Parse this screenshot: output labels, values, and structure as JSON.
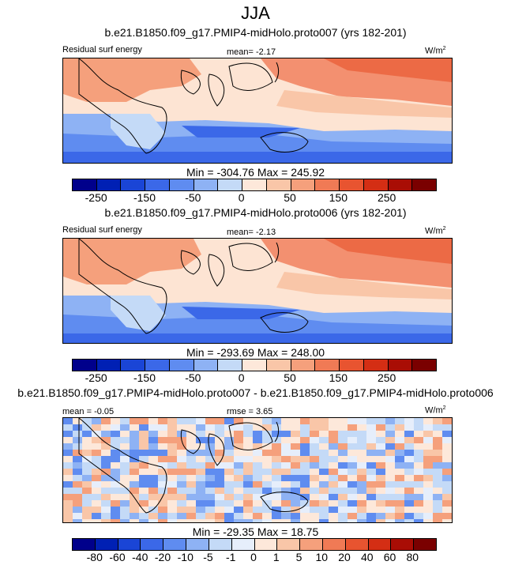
{
  "figure_title": "JJA",
  "panels": [
    {
      "title": "b.e21.B1850.f09_g17.PMIP4-midHolo.proto007 (yrs 182-201)",
      "left_label": "Residual surf energy",
      "mean_label": "mean=",
      "mean_value": "-2.17",
      "units": "W/m",
      "units_exp": "2",
      "minmax": "Min = -304.76 Max = 245.92",
      "colorbar_ticks": [
        "-250",
        "-150",
        "-50",
        "0",
        "50",
        "150",
        "250"
      ]
    },
    {
      "title": "b.e21.B1850.f09_g17.PMIP4-midHolo.proto006 (yrs 182-201)",
      "left_label": "Residual surf energy",
      "mean_label": "mean=",
      "mean_value": "-2.13",
      "units": "W/m",
      "units_exp": "2",
      "minmax": "Min = -293.69 Max = 248.00",
      "colorbar_ticks": [
        "-250",
        "-150",
        "-50",
        "0",
        "50",
        "150",
        "250"
      ]
    },
    {
      "title": "b.e21.B1850.f09_g17.PMIP4-midHolo.proto007 - b.e21.B1850.f09_g17.PMIP4-midHolo.proto006",
      "mean_label": "mean =",
      "mean_value": "-0.05",
      "rmse_label": "rmse =",
      "rmse_value": "3.65",
      "units": "W/m",
      "units_exp": "2",
      "minmax": "Min = -29.35 Max = 18.75",
      "colorbar_ticks": [
        "-80",
        "-60",
        "-40",
        "-20",
        "-10",
        "-5",
        "-1",
        "0",
        "1",
        "5",
        "10",
        "20",
        "40",
        "60",
        "80"
      ]
    }
  ],
  "chart_data": [
    {
      "type": "heatmap",
      "title": "b.e21.B1850.f09_g17.PMIP4-midHolo.proto007 (yrs 182-201)",
      "variable": "Residual surf energy",
      "season": "JJA",
      "units": "W/m2",
      "mean": -2.17,
      "min": -304.76,
      "max": 245.92,
      "colorbar_levels": [
        -300,
        -250,
        -200,
        -150,
        -100,
        -50,
        -25,
        0,
        25,
        50,
        100,
        150,
        200,
        250,
        300
      ],
      "colorbar_colors": [
        "#00008b",
        "#0020b4",
        "#1a45d6",
        "#3b68e8",
        "#5f8cf0",
        "#8eb2f4",
        "#c4daf7",
        "#fde8da",
        "#f9c6a8",
        "#f5a07c",
        "#f07a55",
        "#e85430",
        "#d42e14",
        "#a90d05",
        "#7a0000"
      ]
    },
    {
      "type": "heatmap",
      "title": "b.e21.B1850.f09_g17.PMIP4-midHolo.proto006 (yrs 182-201)",
      "variable": "Residual surf energy",
      "season": "JJA",
      "units": "W/m2",
      "mean": -2.13,
      "min": -293.69,
      "max": 248.0,
      "colorbar_levels": [
        -300,
        -250,
        -200,
        -150,
        -100,
        -50,
        -25,
        0,
        25,
        50,
        100,
        150,
        200,
        250,
        300
      ],
      "colorbar_colors": [
        "#00008b",
        "#0020b4",
        "#1a45d6",
        "#3b68e8",
        "#5f8cf0",
        "#8eb2f4",
        "#c4daf7",
        "#fde8da",
        "#f9c6a8",
        "#f5a07c",
        "#f07a55",
        "#e85430",
        "#d42e14",
        "#a90d05",
        "#7a0000"
      ]
    },
    {
      "type": "heatmap",
      "title": "b.e21.B1850.f09_g17.PMIP4-midHolo.proto007 - b.e21.B1850.f09_g17.PMIP4-midHolo.proto006",
      "season": "JJA",
      "units": "W/m2",
      "mean": -0.05,
      "rmse": 3.65,
      "min": -29.35,
      "max": 18.75,
      "colorbar_levels": [
        -80,
        -60,
        -40,
        -20,
        -10,
        -5,
        -1,
        0,
        1,
        5,
        10,
        20,
        40,
        60,
        80
      ],
      "colorbar_colors": [
        "#00008b",
        "#0020b4",
        "#1a45d6",
        "#3b68e8",
        "#5f8cf0",
        "#8eb2f4",
        "#c4daf7",
        "#e6eefb",
        "#fde8da",
        "#f9c6a8",
        "#f5a07c",
        "#f07a55",
        "#e85430",
        "#d42e14",
        "#a90d05",
        "#7a0000"
      ]
    }
  ]
}
